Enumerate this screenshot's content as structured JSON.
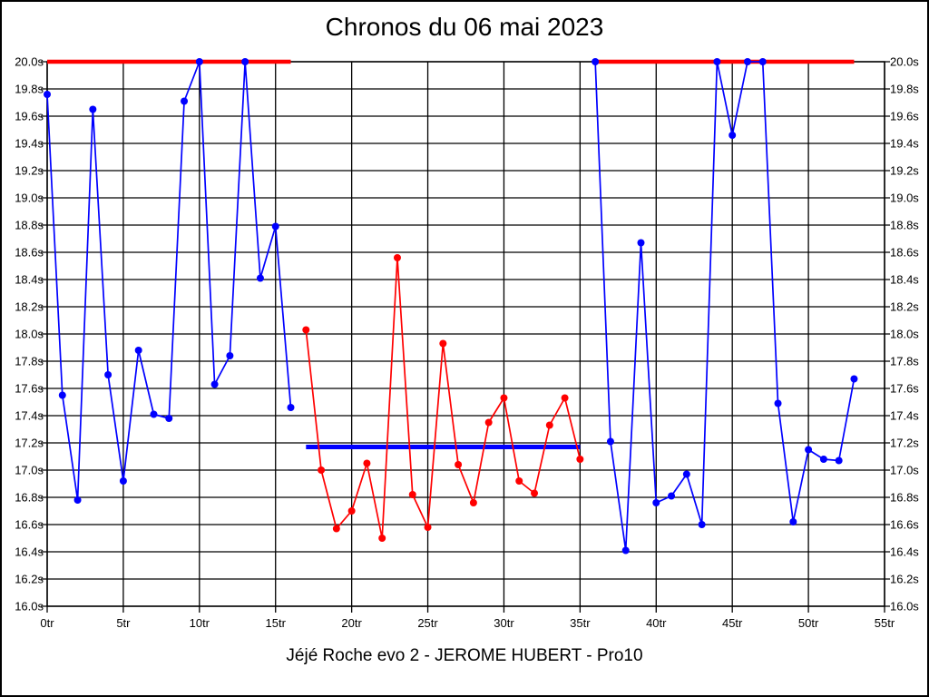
{
  "title": "Chronos du 06 mai 2023",
  "caption": "Jéjé Roche evo 2 - JEROME HUBERT - Pro10",
  "chart_data": {
    "type": "line",
    "title": "Chronos du 06 mai 2023",
    "subtitle": "Jéjé Roche evo 2 - JEROME HUBERT - Pro10",
    "x_unit": "tr",
    "y_unit": "s",
    "xlim": [
      0,
      55
    ],
    "ylim": [
      16.0,
      20.0
    ],
    "x_tick_step": 5,
    "y_tick_step": 0.2,
    "grid": true,
    "legend": "none",
    "x_tick_labels": [
      "0tr",
      "5tr",
      "10tr",
      "15tr",
      "20tr",
      "25tr",
      "30tr",
      "35tr",
      "40tr",
      "45tr",
      "50tr",
      "55tr"
    ],
    "y_tick_labels": [
      "20.0s",
      "19.8s",
      "19.6s",
      "19.4s",
      "19.2s",
      "19.0s",
      "18.8s",
      "18.6s",
      "18.4s",
      "18.2s",
      "18.0s",
      "17.8s",
      "17.6s",
      "17.4s",
      "17.2s",
      "17.0s",
      "16.8s",
      "16.6s",
      "16.4s",
      "16.2s",
      "16.0s"
    ],
    "colors": {
      "blue_series": "#0000ff",
      "red_series": "#ff0000",
      "grid": "#000000",
      "background": "#ffffff"
    },
    "series": [
      {
        "name": "blue-stint-1",
        "color": "#0000ff",
        "points": [
          [
            0,
            19.76
          ],
          [
            1,
            17.55
          ],
          [
            2,
            16.78
          ],
          [
            3,
            19.65
          ],
          [
            4,
            17.7
          ],
          [
            5,
            16.92
          ],
          [
            6,
            17.88
          ],
          [
            7,
            17.41
          ],
          [
            8,
            17.38
          ],
          [
            9,
            19.71
          ],
          [
            10,
            20.0
          ],
          [
            11,
            17.63
          ],
          [
            12,
            17.84
          ],
          [
            13,
            20.0
          ],
          [
            14,
            18.41
          ],
          [
            15,
            18.79
          ],
          [
            16,
            17.46
          ]
        ]
      },
      {
        "name": "red-stint",
        "color": "#ff0000",
        "points": [
          [
            17,
            18.03
          ],
          [
            18,
            17.0
          ],
          [
            19,
            16.57
          ],
          [
            20,
            16.7
          ],
          [
            21,
            17.05
          ],
          [
            22,
            16.5
          ],
          [
            23,
            18.56
          ],
          [
            24,
            16.82
          ],
          [
            25,
            16.58
          ],
          [
            26,
            17.93
          ],
          [
            27,
            17.04
          ],
          [
            28,
            16.76
          ],
          [
            29,
            17.35
          ],
          [
            30,
            17.53
          ],
          [
            31,
            16.92
          ],
          [
            32,
            16.83
          ],
          [
            33,
            17.33
          ],
          [
            34,
            17.53
          ],
          [
            35,
            17.08
          ]
        ]
      },
      {
        "name": "blue-stint-2",
        "color": "#0000ff",
        "points": [
          [
            36,
            20.0
          ],
          [
            37,
            17.21
          ],
          [
            38,
            16.41
          ],
          [
            39,
            18.67
          ],
          [
            40,
            16.76
          ],
          [
            41,
            16.81
          ],
          [
            42,
            16.97
          ],
          [
            43,
            16.6
          ],
          [
            44,
            20.0
          ],
          [
            45,
            19.46
          ],
          [
            46,
            20.0
          ],
          [
            47,
            20.0
          ],
          [
            48,
            17.49
          ],
          [
            49,
            16.62
          ],
          [
            50,
            17.15
          ],
          [
            51,
            17.08
          ],
          [
            52,
            17.07
          ],
          [
            53,
            17.67
          ]
        ]
      }
    ],
    "reference_lines": [
      {
        "name": "red-max-line-1",
        "color": "#ff0000",
        "y": 20.0,
        "x0": 0,
        "x1": 16,
        "width": 4.5
      },
      {
        "name": "blue-average-line",
        "color": "#0000ff",
        "y": 17.17,
        "x0": 17,
        "x1": 35,
        "width": 5
      },
      {
        "name": "red-max-line-2",
        "color": "#ff0000",
        "y": 20.0,
        "x0": 36,
        "x1": 53,
        "width": 4.5
      }
    ]
  }
}
